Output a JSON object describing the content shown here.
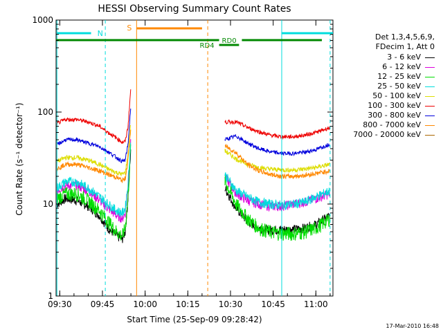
{
  "chart_data": {
    "type": "line",
    "title": "HESSI Observing Summary Count Rates",
    "xlabel": "Start Time (25-Sep-09 09:28:42)",
    "ylabel": "Count Rate (s⁻¹ detector⁻¹)",
    "y_scale": "log",
    "ylim": [
      1,
      1000
    ],
    "xlim": [
      "09:28:42",
      "11:06:00"
    ],
    "x_ticks": [
      "09:30",
      "09:45",
      "10:00",
      "10:15",
      "10:30",
      "10:45",
      "11:00"
    ],
    "y_ticks": [
      "1",
      "10",
      "100",
      "1000"
    ],
    "legend": {
      "header": [
        "Det 1,3,4,5,6,9,",
        "FDecim 1, Att 0"
      ],
      "placement": "right"
    },
    "series": [
      {
        "name": "3 - 6 keV",
        "color": "#000000",
        "x": [
          "09:29",
          "09:32",
          "09:36",
          "09:40",
          "09:44",
          "09:47",
          "09:50",
          "09:52",
          "09:53",
          "09:54",
          "09:55",
          "10:26",
          "10:28",
          "10:32",
          "10:36",
          "10:40",
          "10:44",
          "10:48",
          "10:52",
          "10:56",
          "11:00",
          "11:05"
        ],
        "values": [
          10,
          11.5,
          11,
          9.5,
          7.5,
          5.5,
          4.5,
          4.2,
          5,
          12,
          40,
          null,
          15,
          9,
          6.5,
          5.5,
          5.2,
          5.3,
          5.3,
          5.5,
          6,
          7.5
        ]
      },
      {
        "name": "6 - 12 keV",
        "color": "#dd00dd",
        "x": [
          "09:29",
          "09:32",
          "09:36",
          "09:40",
          "09:44",
          "09:47",
          "09:50",
          "09:52",
          "09:53",
          "09:54",
          "09:55",
          "10:26",
          "10:28",
          "10:32",
          "10:36",
          "10:40",
          "10:44",
          "10:48",
          "10:52",
          "10:56",
          "11:00",
          "11:05"
        ],
        "values": [
          14,
          16,
          16,
          14,
          11,
          9,
          7.5,
          7,
          8,
          16,
          50,
          null,
          20,
          13,
          11,
          10,
          9.5,
          9.5,
          10,
          10.5,
          11.5,
          13
        ]
      },
      {
        "name": "12 - 25 keV",
        "color": "#00dd00",
        "x": [
          "09:29",
          "09:32",
          "09:36",
          "09:40",
          "09:44",
          "09:47",
          "09:50",
          "09:52",
          "09:53",
          "09:54",
          "09:55",
          "10:26",
          "10:28",
          "10:32",
          "10:36",
          "10:40",
          "10:44",
          "10:48",
          "10:52",
          "10:56",
          "11:00",
          "11:05"
        ],
        "values": [
          11.5,
          13,
          13,
          11,
          8.5,
          6.5,
          5,
          4.5,
          5.5,
          12,
          45,
          null,
          18,
          10,
          7,
          5.5,
          5,
          4.8,
          4.8,
          5,
          5.5,
          7
        ]
      },
      {
        "name": "25 - 50 keV",
        "color": "#00dddd",
        "x": [
          "09:29",
          "09:32",
          "09:36",
          "09:40",
          "09:44",
          "09:47",
          "09:50",
          "09:52",
          "09:53",
          "09:54",
          "09:55",
          "10:26",
          "10:28",
          "10:32",
          "10:36",
          "10:40",
          "10:44",
          "10:48",
          "10:52",
          "10:56",
          "11:00",
          "11:05"
        ],
        "values": [
          15,
          17.5,
          17.5,
          15,
          12,
          10,
          8.5,
          8,
          9,
          17,
          55,
          null,
          21,
          14,
          12,
          10.5,
          10,
          9.8,
          10,
          10.5,
          12,
          14
        ]
      },
      {
        "name": "50 - 100 keV",
        "color": "#dddd00",
        "x": [
          "09:29",
          "09:32",
          "09:36",
          "09:40",
          "09:44",
          "09:47",
          "09:50",
          "09:52",
          "09:53",
          "09:54",
          "09:55",
          "10:26",
          "10:28",
          "10:32",
          "10:36",
          "10:40",
          "10:44",
          "10:48",
          "10:52",
          "10:56",
          "11:00",
          "11:05"
        ],
        "values": [
          29,
          32,
          32,
          30,
          27,
          24,
          22,
          21,
          22,
          35,
          80,
          null,
          38,
          31,
          27,
          25,
          24,
          23.5,
          23.5,
          24,
          25,
          27
        ]
      },
      {
        "name": "100 - 300 keV",
        "color": "#ee0000",
        "x": [
          "09:29",
          "09:32",
          "09:36",
          "09:40",
          "09:44",
          "09:47",
          "09:50",
          "09:52",
          "09:53",
          "09:54",
          "09:55",
          "10:26",
          "10:28",
          "10:32",
          "10:36",
          "10:40",
          "10:44",
          "10:48",
          "10:52",
          "10:56",
          "11:00",
          "11:05"
        ],
        "values": [
          75,
          83,
          83,
          78,
          70,
          60,
          52,
          47,
          48,
          70,
          190,
          null,
          78,
          78,
          68,
          61,
          56,
          54,
          54,
          56,
          60,
          68
        ]
      },
      {
        "name": "300 - 800 keV",
        "color": "#0000dd",
        "x": [
          "09:29",
          "09:32",
          "09:36",
          "09:40",
          "09:44",
          "09:47",
          "09:50",
          "09:52",
          "09:53",
          "09:54",
          "09:55",
          "10:26",
          "10:28",
          "10:32",
          "10:36",
          "10:40",
          "10:44",
          "10:48",
          "10:52",
          "10:56",
          "11:00",
          "11:05"
        ],
        "values": [
          44,
          50,
          50,
          46,
          42,
          37,
          32,
          29,
          30,
          45,
          120,
          null,
          50,
          55,
          46,
          40,
          37,
          35.5,
          35.5,
          36.5,
          39,
          45
        ]
      },
      {
        "name": "800 - 7000 keV",
        "color": "#ff8800",
        "x": [
          "09:29",
          "09:32",
          "09:36",
          "09:40",
          "09:44",
          "09:47",
          "09:50",
          "09:52",
          "09:53",
          "09:54",
          "09:55",
          "10:26",
          "10:28",
          "10:32",
          "10:36",
          "10:40",
          "10:44",
          "10:48",
          "10:52",
          "10:56",
          "11:00",
          "11:05"
        ],
        "values": [
          24,
          27,
          27,
          25,
          23,
          21,
          19.5,
          18,
          19,
          30,
          70,
          null,
          43,
          36,
          27,
          23,
          21,
          20,
          20,
          20.5,
          21.5,
          23
        ]
      },
      {
        "name": "7000 - 20000 keV",
        "color": "#aa6600",
        "x": [
          "09:29",
          "09:32",
          "09:36",
          "09:40",
          "09:44",
          "09:47",
          "09:50",
          "09:52",
          "09:53",
          "09:54",
          "09:55",
          "10:26",
          "10:28",
          "10:32",
          "10:36",
          "10:40",
          "10:44",
          "10:48",
          "10:52",
          "10:56",
          "11:00",
          "11:05"
        ],
        "values": [
          null,
          null,
          null,
          null,
          null,
          null,
          null,
          null,
          null,
          null,
          null,
          null,
          null,
          null,
          null,
          null,
          null,
          null,
          null,
          null,
          null,
          null
        ]
      }
    ],
    "annotations": {
      "night_N": {
        "label": "N",
        "color": "#00dddd",
        "from": "09:29",
        "to": "09:41"
      },
      "night_N2": {
        "label": "",
        "color": "#00dddd",
        "from": "10:48",
        "to": "11:06"
      },
      "saa_S": {
        "label": "S",
        "color": "#ff8800",
        "from": "09:57",
        "to": "10:20"
      },
      "decim_RD0": {
        "label": "RD0",
        "color": "#008800"
      },
      "decim_RD4": {
        "label": "RD4",
        "color": "#008800",
        "from": "10:26",
        "to": "10:33"
      },
      "vlines_cyan": [
        "09:29",
        "09:46",
        "10:48",
        "11:05"
      ],
      "vlines_orange": [
        "09:57",
        "10:22"
      ]
    },
    "grid": false
  },
  "timestamp": "17-Mar-2010 16:48"
}
